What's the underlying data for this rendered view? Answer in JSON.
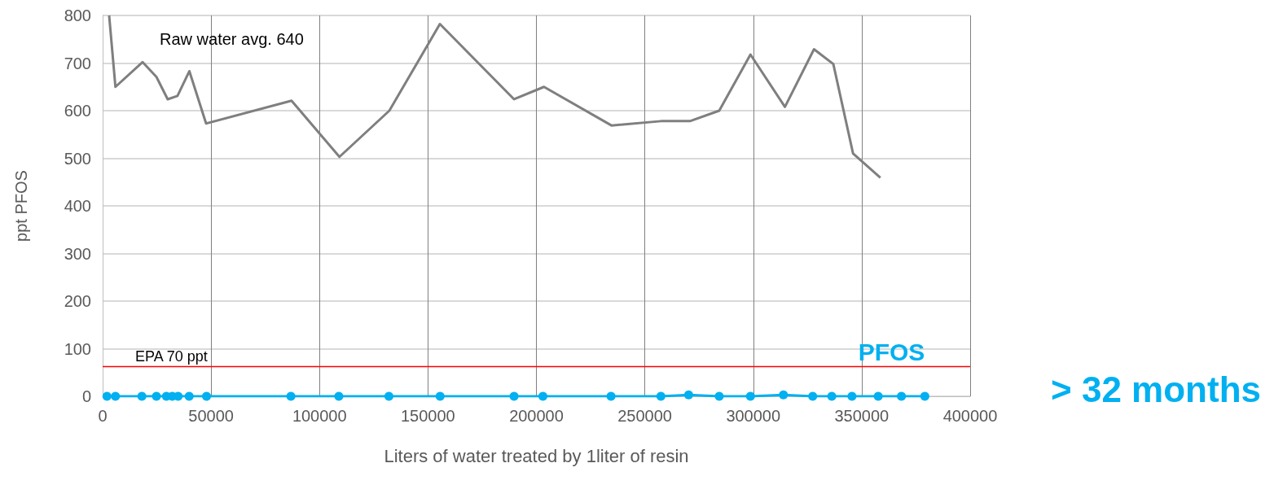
{
  "chart_data": {
    "type": "line",
    "xlabel": "Liters of water treated by 1liter of resin",
    "ylabel": "ppt PFOS",
    "xlim": [
      0,
      400000
    ],
    "xticks": [
      0,
      50000,
      100000,
      150000,
      200000,
      250000,
      300000,
      350000,
      400000
    ],
    "ylim": [
      0,
      800
    ],
    "yticks": [
      0,
      100,
      200,
      300,
      400,
      500,
      600,
      700,
      800
    ],
    "grid": true,
    "legend": false,
    "series": [
      {
        "color": "#7f7f7f",
        "marker": "none",
        "x": [
          3000,
          5900,
          18400,
          24800,
          30000,
          34500,
          40000,
          47700,
          87100,
          109200,
          132200,
          155500,
          189700,
          203500,
          234600,
          257400,
          270800,
          284300,
          298700,
          314600,
          328000,
          336900,
          346000,
          358600
        ],
        "values": [
          800,
          650,
          702,
          671,
          624,
          631,
          683,
          573,
          621,
          503,
          600,
          782,
          624,
          650,
          569,
          578,
          578,
          600,
          718,
          608,
          729,
          698,
          510,
          459
        ]
      },
      {
        "name": "PFOS",
        "color": "#00b0f0",
        "marker": "circle",
        "x": [
          2000,
          5900,
          18100,
          24800,
          29400,
          32100,
          34800,
          39900,
          47900,
          86800,
          108900,
          132000,
          155600,
          189700,
          203000,
          234400,
          257400,
          270200,
          284300,
          298700,
          313900,
          327400,
          336200,
          345500,
          357600,
          368300,
          379100
        ],
        "values": [
          0,
          0,
          0,
          0,
          0,
          0,
          0,
          0,
          0,
          0,
          0,
          0,
          0,
          0,
          0,
          0,
          0,
          3,
          0,
          0,
          3,
          0,
          0,
          0,
          0,
          0,
          0
        ]
      }
    ],
    "ref_lines": [
      {
        "axis": "y",
        "value": 62,
        "label": "EPA 70 ppt",
        "color": "#ff0000"
      }
    ],
    "annotations": [
      "Raw water avg. 640",
      "> 32 months"
    ]
  }
}
